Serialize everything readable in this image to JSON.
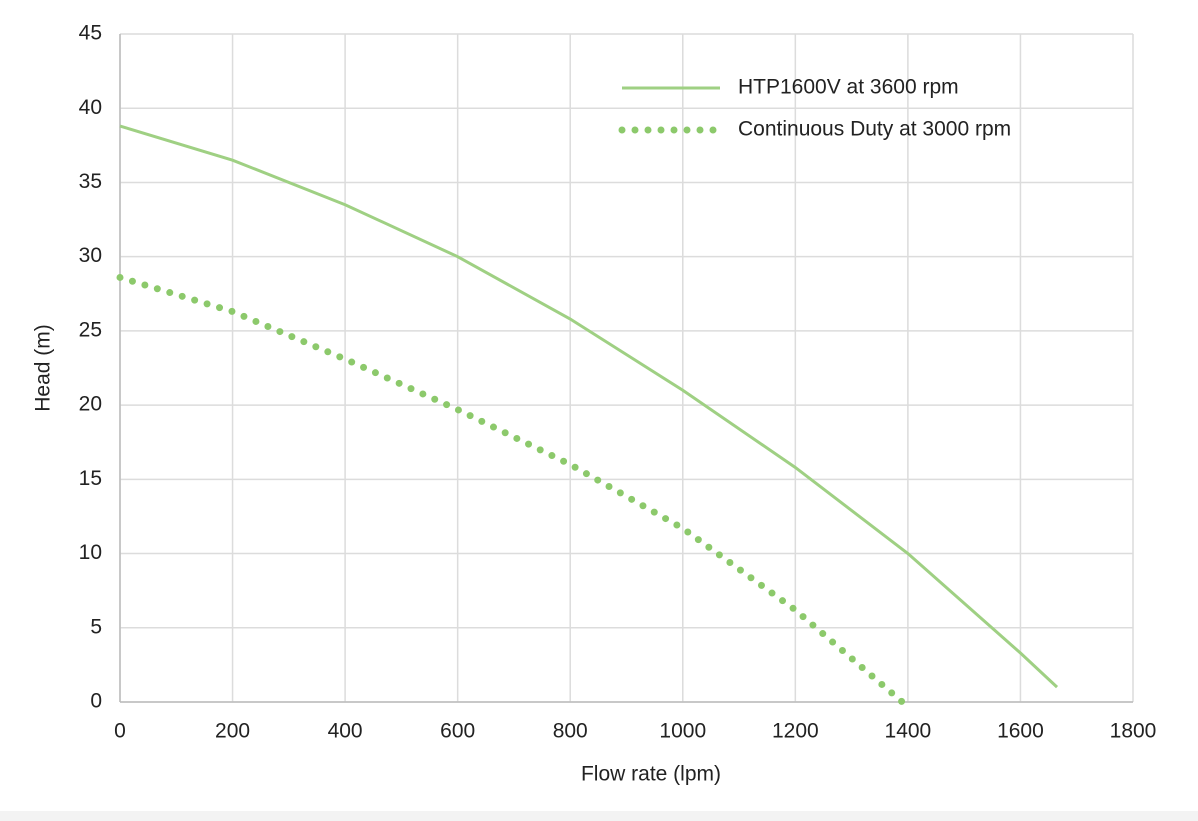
{
  "chart_data": {
    "type": "line",
    "x_label": "Flow rate (lpm)",
    "y_label": "Head (m)",
    "xlim": [
      0,
      1800
    ],
    "xticks": [
      0,
      200,
      400,
      600,
      800,
      1000,
      1200,
      1400,
      1600,
      1800
    ],
    "ylim": [
      0,
      45
    ],
    "yticks": [
      0,
      5,
      10,
      15,
      20,
      25,
      30,
      35,
      40,
      45
    ],
    "grid": true,
    "legend": "top-right",
    "series": [
      {
        "name": "HTP1600V at 3600 rpm",
        "color": "#9fd083",
        "style": "solid",
        "x": [
          0,
          200,
          400,
          600,
          800,
          1000,
          1200,
          1400,
          1600,
          1665
        ],
        "values": [
          38.8,
          36.5,
          33.5,
          30,
          25.8,
          21,
          15.8,
          10,
          3.3,
          1
        ]
      },
      {
        "name": "Continuous Duty at 3000 rpm",
        "color": "#8cc96b",
        "style": "dotted",
        "x": [
          0,
          200,
          400,
          600,
          800,
          1000,
          1200,
          1390
        ],
        "values": [
          28.6,
          26.3,
          23.1,
          19.7,
          16,
          11.7,
          6.2,
          0
        ]
      }
    ]
  }
}
